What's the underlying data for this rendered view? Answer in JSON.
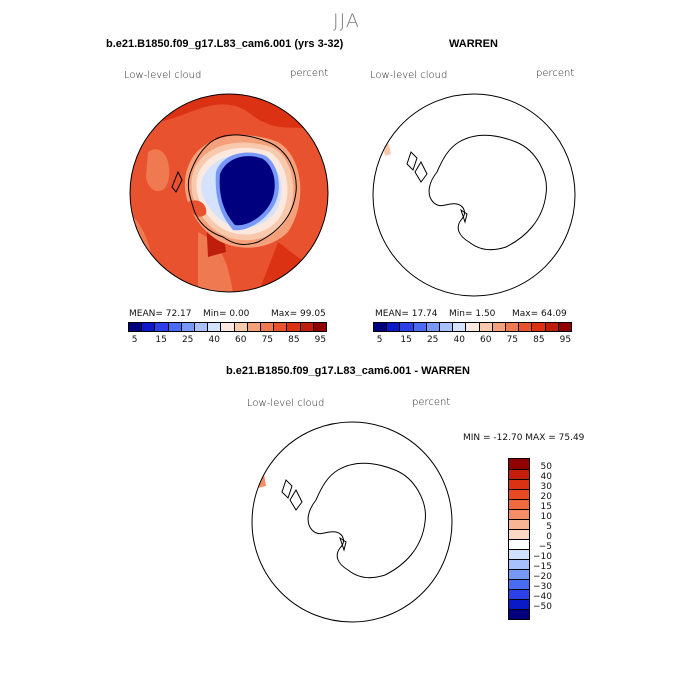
{
  "figure": {
    "season": "JJA"
  },
  "panel1": {
    "title": "b.e21.B1850.f09_g17.L83_cam6.001 (yrs 3-32)",
    "variable": "Low-level cloud",
    "units": "percent",
    "stats": {
      "mean": "MEAN=  72.17",
      "min": "Min=    0.00",
      "max": "Max=  99.05"
    }
  },
  "panel2": {
    "title": "WARREN",
    "variable": "Low-level cloud",
    "units": "percent",
    "stats": {
      "mean": "MEAN=  17.74",
      "min": "Min=    1.50",
      "max": "Max=  64.09"
    }
  },
  "panel3": {
    "title": "b.e21.B1850.f09_g17.L83_cam6.001 - WARREN",
    "variable": "Low-level cloud",
    "units": "percent",
    "minmax": "MIN = -12.70 MAX =  75.49"
  },
  "colorbar_top": {
    "tick_labels": [
      "5",
      "15",
      "25",
      "40",
      "60",
      "75",
      "85",
      "95"
    ],
    "colors": [
      "#00007f",
      "#0a1ac8",
      "#2c40e8",
      "#4a6cf4",
      "#7898f8",
      "#a8c0fc",
      "#d4e2fd",
      "#fbe8de",
      "#f9c9ae",
      "#f4a07a",
      "#ef7a52",
      "#e9522e",
      "#dc3214",
      "#bf1e0c",
      "#900000"
    ]
  },
  "colorbar_diff": {
    "tick_labels": [
      "50",
      "40",
      "30",
      "20",
      "15",
      "10",
      "5",
      "0",
      "−5",
      "−10",
      "−15",
      "−20",
      "−30",
      "−40",
      "−50"
    ],
    "colors": [
      "#900000",
      "#c51e0c",
      "#dc3214",
      "#ea4a22",
      "#f06a3e",
      "#f58e66",
      "#f9b694",
      "#fbd8c4",
      "#ffffff",
      "#d0e0fd",
      "#a8c0fc",
      "#7898f8",
      "#4a6cf4",
      "#2c40e8",
      "#0a1ac8",
      "#00007f"
    ]
  }
}
